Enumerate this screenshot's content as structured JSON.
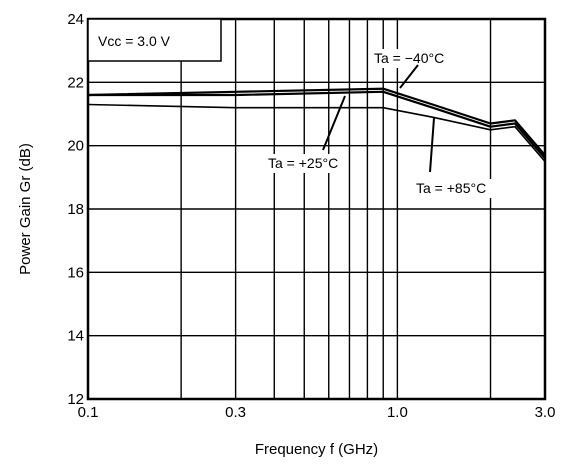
{
  "chart_data": {
    "type": "line",
    "title": "",
    "xlabel": "Frequency  f (GHz)",
    "ylabel": "Power Gain  Gr (dB)",
    "x_scale": "log",
    "xlim": [
      0.1,
      3.0
    ],
    "ylim": [
      12,
      24
    ],
    "x_ticks": [
      0.1,
      0.3,
      1.0,
      3.0
    ],
    "x_tick_labels": [
      "0.1",
      "0.3",
      "1.0",
      "3.0"
    ],
    "y_ticks": [
      12,
      14,
      16,
      18,
      20,
      22,
      24
    ],
    "y_tick_labels": [
      "12",
      "14",
      "16",
      "18",
      "20",
      "22",
      "24"
    ],
    "grid": true,
    "condition_label": "Vcc = 3.0 V",
    "series": [
      {
        "name": "Ta = −40°C",
        "points": [
          [
            0.1,
            21.6
          ],
          [
            0.3,
            21.7
          ],
          [
            0.9,
            21.8
          ],
          [
            1.3,
            21.3
          ],
          [
            2.0,
            20.7
          ],
          [
            2.4,
            20.8
          ],
          [
            3.0,
            19.7
          ]
        ]
      },
      {
        "name": "Ta = +25°C",
        "points": [
          [
            0.1,
            21.6
          ],
          [
            0.3,
            21.6
          ],
          [
            0.9,
            21.7
          ],
          [
            1.3,
            21.2
          ],
          [
            2.0,
            20.6
          ],
          [
            2.4,
            20.7
          ],
          [
            3.0,
            19.6
          ]
        ]
      },
      {
        "name": "Ta = +85°C",
        "points": [
          [
            0.1,
            21.3
          ],
          [
            0.3,
            21.2
          ],
          [
            0.9,
            21.2
          ],
          [
            1.3,
            20.9
          ],
          [
            2.0,
            20.5
          ],
          [
            2.4,
            20.6
          ],
          [
            3.0,
            19.5
          ]
        ]
      }
    ],
    "annotations": [
      {
        "text": "Ta = −40°C"
      },
      {
        "text": "Ta = +25°C"
      },
      {
        "text": "Ta = +85°C"
      }
    ]
  }
}
